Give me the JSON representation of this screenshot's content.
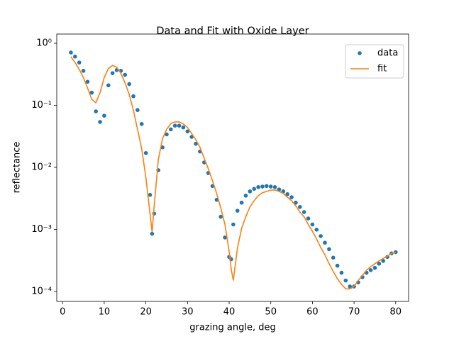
{
  "chart_data": {
    "type": "line",
    "title": "Data and Fit with Oxide Layer",
    "x_label": "grazing angle, deg",
    "y_label": "reflectance",
    "log_y": true,
    "legend": "upper right",
    "xlim": [
      -1.4,
      83.1
    ],
    "ylim": [
      6.9e-05,
      1.41
    ],
    "xticks": [
      0,
      10,
      20,
      30,
      40,
      50,
      60,
      70,
      80
    ],
    "yticks": [
      {
        "value": 0.0001,
        "label": "10⁻⁴"
      },
      {
        "value": 0.001,
        "label": "10⁻³"
      },
      {
        "value": 0.01,
        "label": "10⁻²"
      },
      {
        "value": 0.1,
        "label": "10⁻¹"
      },
      {
        "value": 1,
        "label": "10⁰"
      }
    ],
    "x": [
      2,
      3,
      4,
      5,
      6,
      7,
      8,
      9,
      10,
      11,
      12,
      13,
      14,
      15,
      16,
      17,
      18,
      19,
      20,
      21,
      21.5,
      22,
      23,
      24,
      25,
      26,
      27,
      28,
      29,
      30,
      31,
      32,
      33,
      34,
      35,
      36,
      37,
      38,
      39,
      40,
      40.5,
      41,
      42,
      43,
      44,
      45,
      46,
      47,
      48,
      49,
      50,
      51,
      52,
      53,
      54,
      55,
      56,
      57,
      58,
      59,
      60,
      61,
      62,
      63,
      64,
      65,
      66,
      67,
      68,
      69,
      70,
      71,
      72,
      73,
      74,
      75,
      76,
      77,
      78,
      79,
      80
    ],
    "series": [
      {
        "name": "data",
        "color": "#1f77b4",
        "mode": "markers",
        "values": [
          0.71,
          0.61,
          0.49,
          0.36,
          0.24,
          0.16,
          0.08,
          0.054,
          0.068,
          0.21,
          0.33,
          0.37,
          0.36,
          0.31,
          0.22,
          0.14,
          0.084,
          0.05,
          0.017,
          0.0036,
          0.00085,
          0.0018,
          0.009,
          0.021,
          0.034,
          0.041,
          0.047,
          0.047,
          0.044,
          0.038,
          0.031,
          0.024,
          0.018,
          0.012,
          0.0081,
          0.005,
          0.003,
          0.0016,
          0.00074,
          0.00036,
          0.00033,
          0.0012,
          0.002,
          0.0027,
          0.0035,
          0.0041,
          0.0045,
          0.0048,
          0.0049,
          0.005,
          0.0049,
          0.0048,
          0.0044,
          0.0041,
          0.0037,
          0.0033,
          0.0027,
          0.0023,
          0.0019,
          0.0015,
          0.0012,
          0.00099,
          0.00078,
          0.00061,
          0.00048,
          0.00035,
          0.00026,
          0.0002,
          0.00015,
          0.00012,
          0.00012,
          0.00014,
          0.00017,
          0.0002,
          0.00022,
          0.00024,
          0.00028,
          0.00031,
          0.00036,
          0.00041,
          0.00043
        ]
      },
      {
        "name": "fit",
        "color": "#ff7f0e",
        "mode": "line",
        "values": [
          0.61,
          0.49,
          0.38,
          0.28,
          0.19,
          0.125,
          0.11,
          0.16,
          0.28,
          0.39,
          0.44,
          0.41,
          0.33,
          0.23,
          0.15,
          0.084,
          0.041,
          0.02,
          0.0069,
          0.0018,
          0.0009,
          0.0024,
          0.0134,
          0.029,
          0.041,
          0.051,
          0.054,
          0.054,
          0.05,
          0.044,
          0.035,
          0.028,
          0.021,
          0.014,
          0.0095,
          0.0061,
          0.0038,
          0.0022,
          0.0012,
          0.00044,
          0.00023,
          0.00015,
          0.0005,
          0.00104,
          0.0016,
          0.0023,
          0.0029,
          0.0035,
          0.0039,
          0.0041,
          0.0043,
          0.0043,
          0.0041,
          0.0038,
          0.0033,
          0.0029,
          0.0024,
          0.0019,
          0.0016,
          0.0012,
          0.00093,
          0.0007,
          0.00051,
          0.00039,
          0.00028,
          0.00021,
          0.00016,
          0.00013,
          0.00011,
          0.00011,
          0.00012,
          0.00015,
          0.00018,
          0.00022,
          0.00025,
          0.00028,
          0.00031,
          0.00034,
          0.00037,
          0.00041,
          0.00043
        ]
      }
    ]
  }
}
